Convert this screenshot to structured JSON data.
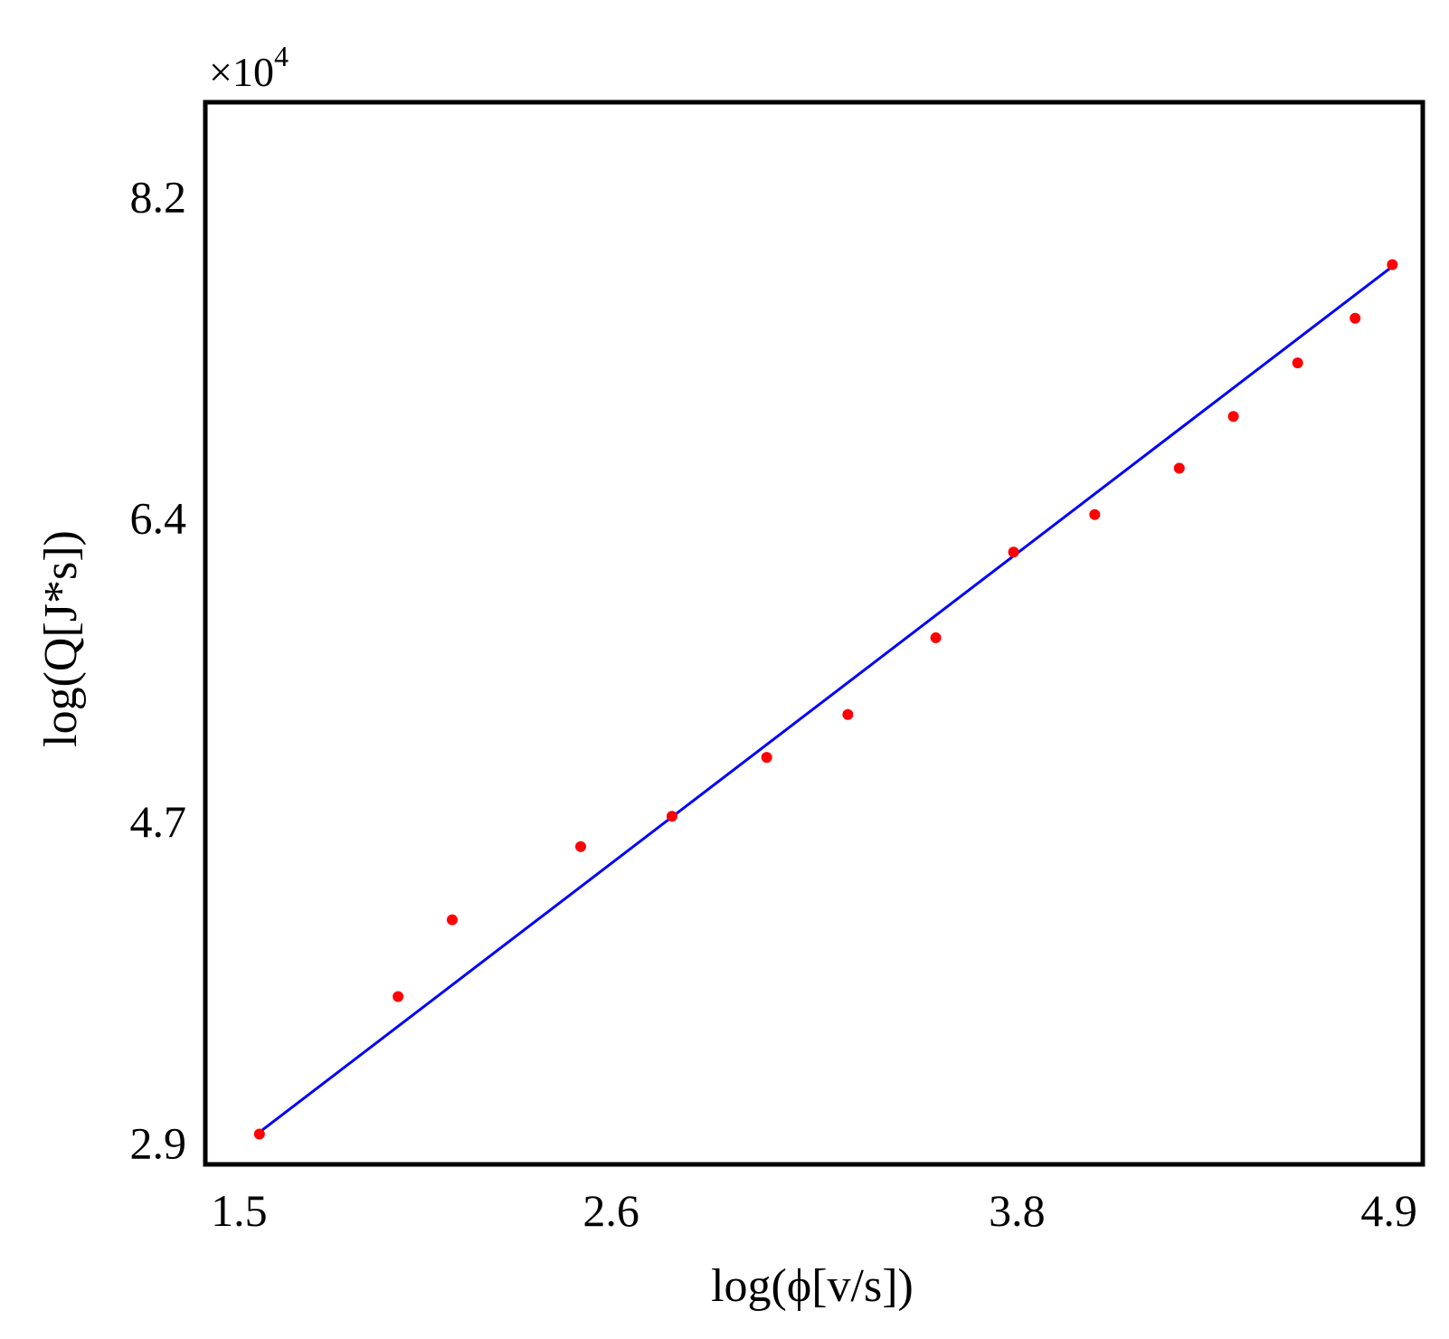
{
  "chart_data": {
    "type": "scatter",
    "title": "",
    "xlabel": "log(ϕ[v/s])",
    "ylabel": "log(Q[J*s])",
    "y_multiplier": {
      "base": "×10",
      "exponent": "4"
    },
    "x_ticks": [
      1.5,
      2.6,
      3.8,
      4.9
    ],
    "x_tick_labels": [
      "1.5",
      "2.6",
      "3.8",
      "4.9"
    ],
    "y_ticks": [
      2.9,
      4.7,
      6.4,
      8.2
    ],
    "y_tick_labels": [
      "2.9",
      "4.7",
      "6.4",
      "8.2"
    ],
    "xlim": [
      1.4,
      5.0
    ],
    "ylim": [
      2.78,
      8.73
    ],
    "grid": false,
    "legend": "none",
    "series": [
      {
        "type": "scatter",
        "color": "#ff0000",
        "x": [
          1.56,
          1.97,
          2.13,
          2.51,
          2.78,
          3.06,
          3.3,
          3.56,
          3.79,
          4.03,
          4.28,
          4.44,
          4.63,
          4.8,
          4.91
        ],
        "y": [
          2.95,
          3.72,
          4.15,
          4.56,
          4.73,
          5.06,
          5.3,
          5.73,
          6.21,
          6.42,
          6.68,
          6.97,
          7.27,
          7.52,
          7.82
        ]
      },
      {
        "type": "line",
        "color": "#0000ff",
        "x": [
          1.56,
          4.91
        ],
        "y": [
          2.96,
          7.81
        ]
      }
    ]
  }
}
